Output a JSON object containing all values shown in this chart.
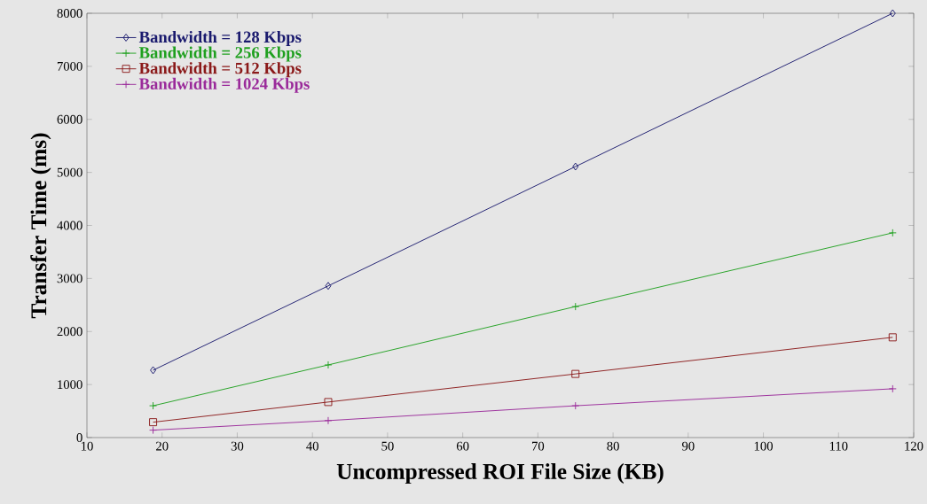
{
  "chart_data": {
    "type": "line",
    "xlabel": "Uncompressed ROI File Size (KB)",
    "ylabel": "Transfer Time (ms)",
    "x": [
      18.8,
      42.1,
      75,
      117.2
    ],
    "series": [
      {
        "name": "Bandwidth = 128 Kbps",
        "color": "#1a1a6e",
        "marker": "diamond",
        "values": [
          1270,
          2860,
          5110,
          8000
        ]
      },
      {
        "name": "Bandwidth = 256 Kbps",
        "color": "#1fa01f",
        "marker": "cross",
        "values": [
          600,
          1370,
          2470,
          3860
        ]
      },
      {
        "name": "Bandwidth = 512 Kbps",
        "color": "#8b1a1a",
        "marker": "square",
        "values": [
          290,
          670,
          1200,
          1890
        ]
      },
      {
        "name": "Bandwidth = 1024 Kbps",
        "color": "#9a2a9a",
        "marker": "cross",
        "values": [
          140,
          320,
          600,
          920
        ]
      }
    ],
    "xlim": [
      10,
      120
    ],
    "xticks": [
      10,
      20,
      30,
      40,
      50,
      60,
      70,
      80,
      90,
      100,
      110,
      120
    ],
    "ylim": [
      0,
      8000
    ],
    "yticks": [
      0,
      1000,
      2000,
      3000,
      4000,
      5000,
      6000,
      7000,
      8000
    ],
    "grid": false,
    "legend": "top left",
    "line_style": "solid"
  }
}
